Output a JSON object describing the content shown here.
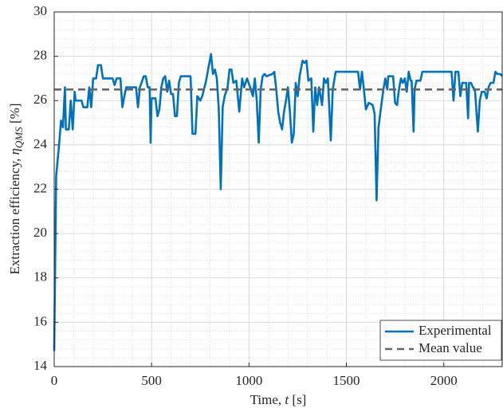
{
  "chart_data": {
    "type": "line",
    "xlabel": {
      "text": "Time, ",
      "symbol": "t",
      "unit": " [s]"
    },
    "ylabel": {
      "text": "Extraction efficiency, ",
      "symbol": "η",
      "subscript": "QMS",
      "unit": " [%]"
    },
    "xlim": [
      0,
      2300
    ],
    "xticks": [
      0,
      500,
      1000,
      1500,
      2000
    ],
    "ylim": [
      14,
      30
    ],
    "yticks": [
      14,
      16,
      18,
      20,
      22,
      24,
      26,
      28,
      30
    ],
    "grid": true,
    "minor_grid": true,
    "legend": "lower right",
    "series": [
      {
        "name": "Experimental",
        "color": "#0072bd",
        "style": "solid",
        "x": [
          0,
          10,
          25,
          35,
          45,
          55,
          60,
          75,
          85,
          95,
          105,
          110,
          140,
          150,
          170,
          180,
          190,
          200,
          215,
          225,
          240,
          250,
          300,
          310,
          320,
          340,
          350,
          360,
          370,
          420,
          430,
          440,
          460,
          470,
          480,
          490,
          495,
          500,
          520,
          530,
          540,
          550,
          560,
          570,
          580,
          590,
          600,
          610,
          620,
          630,
          640,
          650,
          700,
          710,
          725,
          735,
          750,
          760,
          780,
          790,
          805,
          815,
          825,
          835,
          845,
          855,
          865,
          875,
          890,
          900,
          910,
          920,
          935,
          950,
          965,
          975,
          990,
          1010,
          1020,
          1030,
          1040,
          1050,
          1060,
          1070,
          1080,
          1090,
          1120,
          1130,
          1140,
          1150,
          1160,
          1170,
          1180,
          1190,
          1200,
          1210,
          1220,
          1230,
          1240,
          1250,
          1260,
          1275,
          1285,
          1295,
          1305,
          1320,
          1330,
          1340,
          1350,
          1360,
          1375,
          1385,
          1395,
          1405,
          1420,
          1430,
          1445,
          1560,
          1570,
          1580,
          1590,
          1600,
          1615,
          1635,
          1645,
          1655,
          1665,
          1675,
          1690,
          1700,
          1710,
          1715,
          1740,
          1750,
          1760,
          1770,
          1780,
          1790,
          1800,
          1810,
          1820,
          1830,
          1835,
          1845,
          1850,
          1860,
          1880,
          1890,
          2040,
          2050,
          2060,
          2075,
          2085,
          2095,
          2115,
          2125,
          2130,
          2140,
          2150,
          2160,
          2175,
          2185,
          2195,
          2210,
          2220,
          2230,
          2240,
          2255,
          2265,
          2275,
          2290,
          2300
        ],
        "values": [
          14.7,
          22.6,
          24.0,
          25.1,
          24.8,
          26.6,
          24.7,
          24.7,
          26.0,
          24.7,
          26.4,
          26.0,
          26.0,
          25.7,
          25.7,
          26.6,
          25.7,
          27.0,
          27.0,
          27.6,
          27.6,
          27.0,
          27.0,
          26.7,
          27.0,
          27.0,
          25.7,
          26.2,
          26.6,
          26.6,
          25.7,
          26.6,
          27.1,
          27.1,
          26.6,
          26.6,
          24.1,
          26.1,
          26.1,
          25.3,
          25.6,
          26.6,
          27.0,
          27.1,
          26.4,
          26.9,
          26.3,
          26.3,
          25.3,
          25.3,
          26.8,
          27.1,
          27.1,
          24.5,
          24.5,
          26.2,
          26.0,
          26.2,
          26.9,
          27.4,
          28.1,
          27.2,
          27.4,
          27.0,
          25.6,
          22.0,
          25.7,
          26.2,
          26.6,
          27.4,
          27.4,
          26.8,
          26.9,
          25.5,
          27.0,
          26.6,
          27.0,
          26.5,
          26.2,
          27.0,
          26.0,
          24.1,
          26.5,
          27.1,
          27.2,
          27.1,
          27.2,
          27.3,
          26.5,
          25.5,
          25.0,
          24.7,
          25.5,
          26.0,
          26.6,
          25.5,
          24.1,
          24.5,
          26.8,
          26.2,
          27.1,
          27.8,
          27.7,
          27.8,
          26.9,
          27.0,
          24.6,
          26.6,
          25.8,
          26.6,
          25.8,
          27.0,
          26.8,
          27.0,
          24.2,
          26.5,
          27.3,
          27.3,
          26.5,
          27.3,
          26.5,
          25.6,
          25.9,
          25.8,
          25.4,
          21.5,
          24.8,
          25.5,
          26.5,
          27.0,
          26.5,
          27.1,
          27.1,
          25.9,
          25.8,
          26.5,
          27.0,
          26.8,
          27.0,
          26.4,
          27.3,
          26.9,
          26.9,
          24.6,
          26.5,
          26.9,
          26.9,
          27.3,
          27.3,
          26.0,
          27.3,
          27.3,
          26.2,
          26.8,
          26.8,
          25.2,
          26.8,
          26.8,
          26.6,
          26.5,
          24.6,
          26.0,
          26.4,
          26.4,
          26.1,
          26.6,
          26.8,
          26.8,
          27.3,
          27.2,
          27.2,
          27.1
        ]
      },
      {
        "name": "Mean value",
        "color": "#666666",
        "style": "dashed",
        "x": [
          0,
          2300
        ],
        "values": [
          26.5,
          26.5
        ]
      }
    ]
  }
}
